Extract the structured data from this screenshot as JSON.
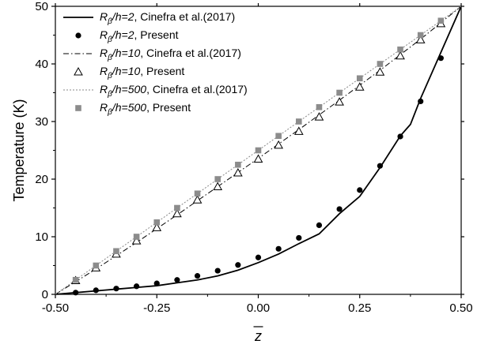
{
  "chart_data": {
    "type": "line",
    "xlabel": "z",
    "ylabel": "Temperature (K)",
    "xlim": [
      -0.5,
      0.5
    ],
    "ylim": [
      0,
      50
    ],
    "x_ticks": [
      "-0.50",
      "-0.25",
      "0.00",
      "0.25",
      "0.50"
    ],
    "x_tick_values": [
      -0.5,
      -0.25,
      0.0,
      0.25,
      0.5
    ],
    "y_ticks": [
      "0",
      "10",
      "20",
      "30",
      "40",
      "50"
    ],
    "y_tick_values": [
      0,
      10,
      20,
      30,
      40,
      50
    ],
    "grid": false,
    "legend_position": "top-left",
    "series": [
      {
        "name_main": "R",
        "name_sub": "β",
        "name_rest": "/h=2",
        "name_tail": ", Cinefra et al.(2017)",
        "style": "line",
        "dash": "solid",
        "color": "#000000",
        "x": [
          -0.5,
          -0.45,
          -0.4,
          -0.35,
          -0.3,
          -0.25,
          -0.2,
          -0.15,
          -0.1,
          -0.05,
          0.0,
          0.05,
          0.1,
          0.15,
          0.2,
          0.25,
          0.3,
          0.35,
          0.375,
          0.4,
          0.45,
          0.5
        ],
        "y": [
          0,
          0.3,
          0.6,
          0.9,
          1.2,
          1.5,
          2.0,
          2.5,
          3.2,
          4.2,
          5.5,
          7.0,
          8.8,
          10.5,
          14.0,
          17.0,
          22.0,
          27.5,
          29.5,
          34.0,
          42.0,
          50.0
        ]
      },
      {
        "name_main": "R",
        "name_sub": "β",
        "name_rest": "/h=2",
        "name_tail": ", Present",
        "style": "marker",
        "marker": "filled-circle",
        "color": "#000000",
        "x": [
          -0.45,
          -0.4,
          -0.35,
          -0.3,
          -0.25,
          -0.2,
          -0.15,
          -0.1,
          -0.05,
          0.0,
          0.05,
          0.1,
          0.15,
          0.2,
          0.25,
          0.3,
          0.35,
          0.4,
          0.45
        ],
        "y": [
          0.3,
          0.7,
          1.0,
          1.4,
          1.9,
          2.5,
          3.2,
          4.1,
          5.1,
          6.4,
          7.9,
          9.8,
          12.0,
          14.8,
          18.1,
          22.3,
          27.4,
          33.5,
          41.0
        ]
      },
      {
        "name_main": "R",
        "name_sub": "β",
        "name_rest": "/h=10",
        "name_tail": ", Cinefra et al.(2017)",
        "style": "line",
        "dash": "dashdot",
        "color": "#000000",
        "x": [
          -0.5,
          -0.4,
          -0.3,
          -0.2,
          -0.1,
          0.0,
          0.1,
          0.2,
          0.3,
          0.4,
          0.5
        ],
        "y": [
          0,
          4.4,
          9.0,
          13.8,
          18.7,
          23.6,
          28.6,
          33.7,
          38.9,
          44.3,
          50.0
        ]
      },
      {
        "name_main": "R",
        "name_sub": "β",
        "name_rest": "/h=10",
        "name_tail": ", Present",
        "style": "marker",
        "marker": "open-triangle",
        "color": "#000000",
        "x": [
          -0.45,
          -0.4,
          -0.35,
          -0.3,
          -0.25,
          -0.2,
          -0.15,
          -0.1,
          -0.05,
          0.0,
          0.05,
          0.1,
          0.15,
          0.2,
          0.25,
          0.3,
          0.35,
          0.4,
          0.45
        ],
        "y": [
          2.4,
          4.6,
          7.0,
          9.3,
          11.6,
          14.0,
          16.4,
          18.7,
          21.1,
          23.5,
          25.9,
          28.3,
          30.8,
          33.4,
          36.0,
          38.6,
          41.4,
          44.2,
          47.0
        ]
      },
      {
        "name_main": "R",
        "name_sub": "β",
        "name_rest": "/h=500",
        "name_tail": ", Cinefra et al.(2017)",
        "style": "line",
        "dash": "dotted",
        "color": "#888888",
        "x": [
          -0.5,
          -0.4,
          -0.3,
          -0.2,
          -0.1,
          0.0,
          0.1,
          0.2,
          0.3,
          0.4,
          0.5
        ],
        "y": [
          0,
          5.0,
          10.0,
          15.0,
          20.0,
          25.0,
          30.0,
          35.0,
          40.0,
          45.0,
          50.0
        ]
      },
      {
        "name_main": "R",
        "name_sub": "β",
        "name_rest": "/h=500",
        "name_tail": ", Present",
        "style": "marker",
        "marker": "filled-square",
        "color": "#8c8c8c",
        "x": [
          -0.45,
          -0.4,
          -0.35,
          -0.3,
          -0.25,
          -0.2,
          -0.15,
          -0.1,
          -0.05,
          0.0,
          0.05,
          0.1,
          0.15,
          0.2,
          0.25,
          0.3,
          0.35,
          0.4,
          0.45
        ],
        "y": [
          2.5,
          5.0,
          7.5,
          10.0,
          12.5,
          15.0,
          17.5,
          20.0,
          22.5,
          25.0,
          27.5,
          30.0,
          32.5,
          35.0,
          37.5,
          40.0,
          42.5,
          45.0,
          47.5
        ]
      }
    ]
  }
}
